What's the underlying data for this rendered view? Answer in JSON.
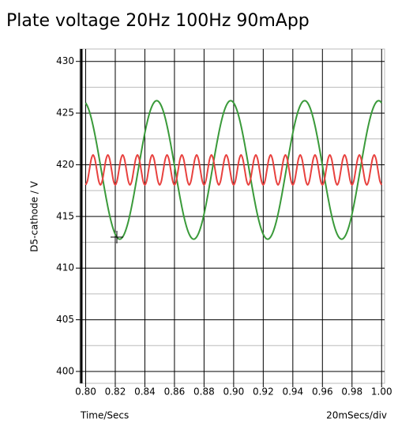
{
  "chart_data": {
    "type": "line",
    "title": "Plate voltage 20Hz 100Hz 90mApp",
    "y_label": "D5-cathode / V",
    "x_label": "Time/Secs",
    "x_scale_note": "20mSecs/div",
    "xlim": [
      0.796,
      1.002
    ],
    "ylim": [
      398.85,
      431.2
    ],
    "xticks": [
      {
        "value": 0.8,
        "label": "0.80"
      },
      0.82,
      0.84,
      0.86,
      0.88,
      {
        "value": 0.9,
        "label": "0.90"
      },
      0.92,
      0.94,
      0.96,
      0.98,
      {
        "value": 1.0,
        "label": "1.00"
      }
    ],
    "yticks": [
      400,
      405,
      410,
      415,
      420,
      425,
      430
    ],
    "y_minor_ticks": [
      402.5,
      407.5,
      412.5,
      417.5,
      422.5,
      427.5
    ],
    "grid": true,
    "x": [
      0.8,
      0.80125,
      0.8025,
      0.80375,
      0.805,
      0.80625,
      0.8075,
      0.80875,
      0.81,
      0.81125,
      0.8125,
      0.81375,
      0.815,
      0.81625,
      0.8175,
      0.81875,
      0.82,
      0.82125,
      0.8225,
      0.82375,
      0.825,
      0.82625,
      0.8275,
      0.82875,
      0.83,
      0.83125,
      0.8325,
      0.83375,
      0.835,
      0.83625,
      0.8375,
      0.83875,
      0.84,
      0.84125,
      0.8425,
      0.84375,
      0.845,
      0.84625,
      0.8475,
      0.84875,
      0.85,
      0.85125,
      0.8525,
      0.85375,
      0.855,
      0.85625,
      0.8575,
      0.85875,
      0.86,
      0.86125,
      0.8625,
      0.86375,
      0.865,
      0.86625,
      0.8675,
      0.86875,
      0.87,
      0.87125,
      0.8725,
      0.87375,
      0.875,
      0.87625,
      0.8775,
      0.87875,
      0.88,
      0.88125,
      0.8825,
      0.88375,
      0.885,
      0.88625,
      0.8875,
      0.88875,
      0.89,
      0.89125,
      0.8925,
      0.89375,
      0.895,
      0.89625,
      0.8975,
      0.89875,
      0.9,
      0.90125,
      0.9025,
      0.90375,
      0.905,
      0.90625,
      0.9075,
      0.90875,
      0.91,
      0.91125,
      0.9125,
      0.91375,
      0.915,
      0.91625,
      0.9175,
      0.91875,
      0.92,
      0.92125,
      0.9225,
      0.92375,
      0.925,
      0.92625,
      0.9275,
      0.92875,
      0.93,
      0.93125,
      0.9325,
      0.93375,
      0.935,
      0.93625,
      0.9375,
      0.93875,
      0.94,
      0.94125,
      0.9425,
      0.94375,
      0.945,
      0.94625,
      0.9475,
      0.94875,
      0.95,
      0.95125,
      0.9525,
      0.95375,
      0.955,
      0.95625,
      0.9575,
      0.95875,
      0.96,
      0.96125,
      0.9625,
      0.96375,
      0.965,
      0.96625,
      0.9675,
      0.96875,
      0.97,
      0.97125,
      0.9725,
      0.97375,
      0.975,
      0.97625,
      0.9775,
      0.97875,
      0.98,
      0.98125,
      0.9825,
      0.98375,
      0.985,
      0.98625,
      0.9875,
      0.98875,
      0.99,
      0.99125,
      0.9925,
      0.99375,
      0.995,
      0.99625,
      0.9975,
      0.99875,
      1.0
    ],
    "series": [
      {
        "color": "#3a9a3a",
        "values": [
          425.99,
          425.65,
          425.16,
          424.53,
          423.77,
          422.91,
          421.97,
          420.96,
          419.92,
          418.87,
          417.83,
          416.84,
          415.91,
          415.07,
          414.34,
          413.73,
          413.27,
          412.96,
          412.81,
          412.83,
          413.01,
          413.35,
          413.84,
          414.47,
          415.23,
          416.09,
          417.03,
          418.04,
          419.08,
          420.13,
          421.17,
          422.16,
          423.09,
          423.93,
          424.66,
          425.27,
          425.73,
          426.04,
          426.19,
          426.17,
          425.99,
          425.65,
          425.16,
          424.53,
          423.77,
          422.91,
          421.97,
          420.96,
          419.92,
          418.87,
          417.83,
          416.84,
          415.91,
          415.07,
          414.34,
          413.73,
          413.27,
          412.96,
          412.81,
          412.83,
          413.01,
          413.35,
          413.84,
          414.47,
          415.23,
          416.09,
          417.03,
          418.04,
          419.08,
          420.13,
          421.17,
          422.16,
          423.09,
          423.93,
          424.66,
          425.27,
          425.73,
          426.04,
          426.19,
          426.17,
          425.99,
          425.65,
          425.16,
          424.53,
          423.77,
          422.91,
          421.97,
          420.96,
          419.92,
          418.87,
          417.83,
          416.84,
          415.91,
          415.07,
          414.34,
          413.73,
          413.27,
          412.96,
          412.81,
          412.83,
          413.01,
          413.35,
          413.84,
          414.47,
          415.23,
          416.09,
          417.03,
          418.04,
          419.08,
          420.13,
          421.17,
          422.16,
          423.09,
          423.93,
          424.66,
          425.27,
          425.73,
          426.04,
          426.19,
          426.17,
          425.99,
          425.65,
          425.16,
          424.53,
          423.77,
          422.91,
          421.97,
          420.96,
          419.92,
          418.87,
          417.83,
          416.84,
          415.91,
          415.07,
          414.34,
          413.73,
          413.27,
          412.96,
          412.81,
          412.83,
          413.01,
          413.35,
          413.84,
          414.47,
          415.23,
          416.09,
          417.03,
          418.04,
          419.08,
          420.13,
          421.17,
          422.16,
          423.09,
          423.93,
          424.66,
          425.27,
          425.73,
          426.04,
          426.19,
          426.17,
          425.99
        ]
      },
      {
        "color": "#e8413e",
        "values": [
          418.05,
          418.47,
          419.5,
          420.53,
          420.95,
          420.53,
          419.5,
          418.47,
          418.05,
          418.47,
          419.5,
          420.53,
          420.95,
          420.53,
          419.5,
          418.47,
          418.05,
          418.47,
          419.5,
          420.53,
          420.95,
          420.53,
          419.5,
          418.47,
          418.05,
          418.47,
          419.5,
          420.53,
          420.95,
          420.53,
          419.5,
          418.47,
          418.05,
          418.47,
          419.5,
          420.53,
          420.95,
          420.53,
          419.5,
          418.47,
          418.05,
          418.47,
          419.5,
          420.53,
          420.95,
          420.53,
          419.5,
          418.47,
          418.05,
          418.47,
          419.5,
          420.53,
          420.95,
          420.53,
          419.5,
          418.47,
          418.05,
          418.47,
          419.5,
          420.53,
          420.95,
          420.53,
          419.5,
          418.47,
          418.05,
          418.47,
          419.5,
          420.53,
          420.95,
          420.53,
          419.5,
          418.47,
          418.05,
          418.47,
          419.5,
          420.53,
          420.95,
          420.53,
          419.5,
          418.47,
          418.05,
          418.47,
          419.5,
          420.53,
          420.95,
          420.53,
          419.5,
          418.47,
          418.05,
          418.47,
          419.5,
          420.53,
          420.95,
          420.53,
          419.5,
          418.47,
          418.05,
          418.47,
          419.5,
          420.53,
          420.95,
          420.53,
          419.5,
          418.47,
          418.05,
          418.47,
          419.5,
          420.53,
          420.95,
          420.53,
          419.5,
          418.47,
          418.05,
          418.47,
          419.5,
          420.53,
          420.95,
          420.53,
          419.5,
          418.47,
          418.05,
          418.47,
          419.5,
          420.53,
          420.95,
          420.53,
          419.5,
          418.47,
          418.05,
          418.47,
          419.5,
          420.53,
          420.95,
          420.53,
          419.5,
          418.47,
          418.05,
          418.47,
          419.5,
          420.53,
          420.95,
          420.53,
          419.5,
          418.47,
          418.05,
          418.47,
          419.5,
          420.53,
          420.95,
          420.53,
          419.5,
          418.47,
          418.05,
          418.47,
          419.5,
          420.53,
          420.95,
          420.53,
          419.5,
          418.47,
          418.05
        ]
      }
    ]
  }
}
